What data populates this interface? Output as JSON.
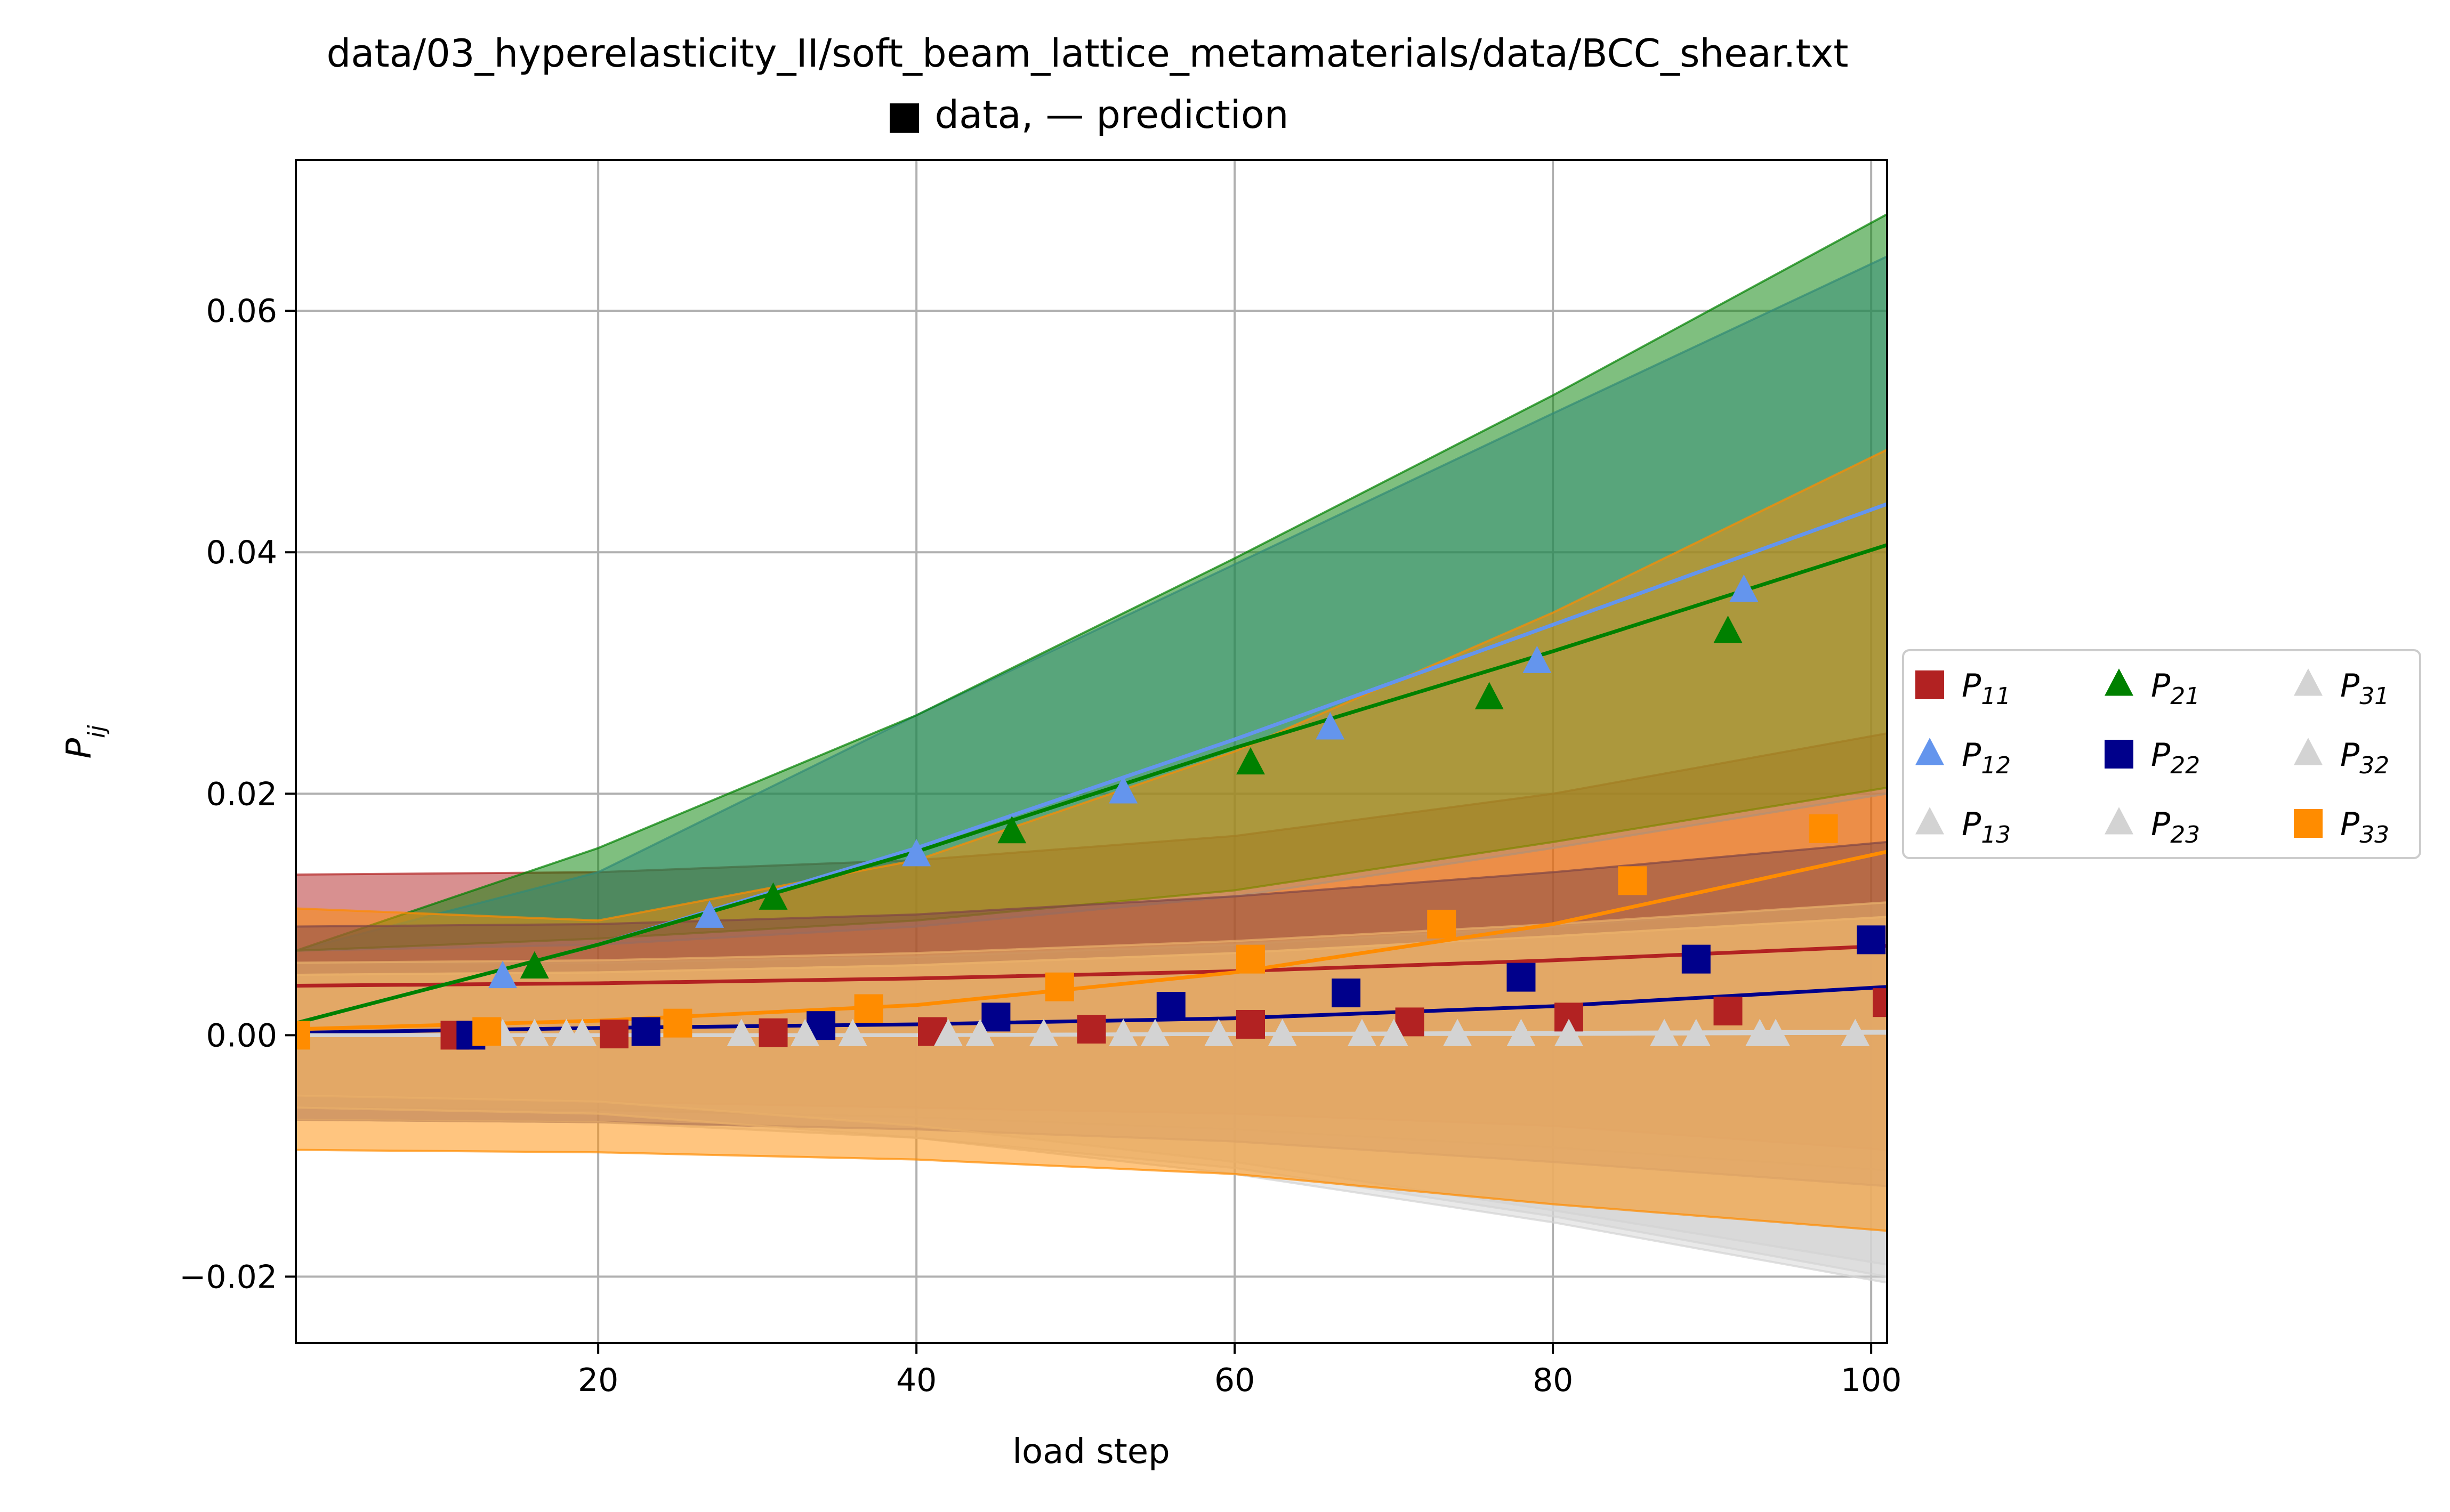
{
  "chart_data": {
    "type": "line",
    "title": "data/03_hyperelasticity_II/soft_beam_lattice_metamaterials/data/BCC_shear.txt",
    "subtitle": "■ data, — prediction",
    "xlabel": "load step",
    "ylabel": "P_ij",
    "xlim": [
      1,
      101
    ],
    "ylim": [
      -0.0255,
      0.0725
    ],
    "xticks": [
      20,
      40,
      60,
      80,
      100
    ],
    "yticks": [
      -0.02,
      0.0,
      0.02,
      0.04,
      0.06
    ],
    "xtick_labels": [
      "20",
      "40",
      "60",
      "80",
      "100"
    ],
    "ytick_labels": [
      "−0.02",
      "0.00",
      "0.02",
      "0.04",
      "0.06"
    ],
    "grid": true,
    "legend_position": "outside-right",
    "series": [
      {
        "name": "P",
        "sub": "11",
        "color": "#b22222",
        "marker": "square",
        "data_x": [
          11,
          21,
          31,
          41,
          51,
          61,
          71,
          81,
          91,
          101
        ],
        "data_y": [
          0.0,
          0.0001,
          0.0002,
          0.0003,
          0.0005,
          0.0009,
          0.0011,
          0.0015,
          0.002,
          0.0027
        ],
        "pred_x": [
          1,
          20,
          40,
          60,
          80,
          101
        ],
        "pred_y": [
          0.0041,
          0.0043,
          0.0047,
          0.0053,
          0.0062,
          0.0074
        ],
        "band_upper": [
          0.0133,
          0.0135,
          0.0145,
          0.0165,
          0.02,
          0.025
        ],
        "band_lower": [
          -0.005,
          -0.0055,
          -0.006,
          -0.0065,
          -0.0075,
          -0.0095
        ]
      },
      {
        "name": "P",
        "sub": "12",
        "color": "#6495ed",
        "marker": "triangle",
        "data_x": [
          14,
          27,
          40,
          53,
          66,
          79,
          92
        ],
        "data_y": [
          0.0048,
          0.0098,
          0.0149,
          0.0201,
          0.0254,
          0.0309,
          0.0368
        ],
        "pred_x": [
          1,
          20,
          40,
          60,
          80,
          101
        ],
        "pred_y": [
          0.001,
          0.0075,
          0.0155,
          0.0245,
          0.034,
          0.044
        ],
        "band_upper": [
          0.007,
          0.0135,
          0.0265,
          0.039,
          0.0515,
          0.0645
        ],
        "band_lower": [
          0.007,
          0.0075,
          0.009,
          0.0115,
          0.0155,
          0.02
        ]
      },
      {
        "name": "P",
        "sub": "13",
        "color": "#d3d3d3",
        "marker": "triangle",
        "data_x": [
          16,
          29,
          42,
          55,
          68,
          81,
          94
        ],
        "data_y": [
          0.0,
          0.0,
          0.0,
          0.0,
          0.0,
          0.0,
          0.0
        ],
        "pred_x": [
          1,
          20,
          40,
          60,
          80,
          101
        ],
        "pred_y": [
          0.0,
          0.0,
          0.0,
          0.0001,
          0.0002,
          0.0003
        ],
        "band_upper": [
          0.006,
          0.006,
          0.0065,
          0.0075,
          0.009,
          0.011
        ],
        "band_lower": [
          -0.006,
          -0.0062,
          -0.0068,
          -0.0078,
          -0.0093,
          -0.0112
        ]
      },
      {
        "name": "P",
        "sub": "21",
        "color": "#008000",
        "marker": "triangle",
        "data_x": [
          16,
          31,
          46,
          61,
          76,
          91
        ],
        "data_y": [
          0.0056,
          0.0113,
          0.0168,
          0.0225,
          0.0279,
          0.0334
        ],
        "pred_x": [
          1,
          20,
          40,
          60,
          80,
          101
        ],
        "pred_y": [
          0.001,
          0.0075,
          0.0152,
          0.0238,
          0.0318,
          0.0406
        ],
        "band_upper": [
          0.007,
          0.0155,
          0.0265,
          0.0395,
          0.053,
          0.068
        ],
        "band_lower": [
          0.007,
          0.008,
          0.0095,
          0.012,
          0.016,
          0.0205
        ]
      },
      {
        "name": "P",
        "sub": "22",
        "color": "#00008b",
        "marker": "square",
        "data_x": [
          12,
          23,
          34,
          45,
          56,
          67,
          78,
          89,
          100
        ],
        "data_y": [
          0.0,
          0.0003,
          0.0008,
          0.0015,
          0.0024,
          0.0035,
          0.0048,
          0.0063,
          0.0079
        ],
        "pred_x": [
          1,
          20,
          40,
          60,
          80,
          101
        ],
        "pred_y": [
          0.0002,
          0.0006,
          0.0009,
          0.0014,
          0.0024,
          0.004
        ],
        "band_upper": [
          0.009,
          0.0092,
          0.01,
          0.0115,
          0.0135,
          0.016
        ],
        "band_lower": [
          -0.007,
          -0.0072,
          -0.0078,
          -0.0088,
          -0.0105,
          -0.0125
        ]
      },
      {
        "name": "P",
        "sub": "23",
        "color": "#d3d3d3",
        "marker": "triangle",
        "data_x": [
          18,
          33,
          48,
          63,
          78,
          93
        ],
        "data_y": [
          0.0,
          0.0,
          0.0,
          0.0,
          0.0,
          0.0
        ],
        "pred_x": [
          1,
          20,
          40,
          60,
          80,
          101
        ],
        "pred_y": [
          0.0,
          0.0,
          0.0,
          0.0001,
          0.0001,
          0.0002
        ],
        "band_upper": [
          0.006,
          0.0062,
          0.0068,
          0.0078,
          0.0092,
          0.011
        ],
        "band_lower": [
          -0.007,
          -0.0072,
          -0.0085,
          -0.011,
          -0.015,
          -0.02
        ]
      },
      {
        "name": "P",
        "sub": "31",
        "color": "#d3d3d3",
        "marker": "triangle",
        "data_x": [
          14,
          29,
          44,
          59,
          74,
          89
        ],
        "data_y": [
          0.0,
          0.0,
          0.0,
          0.0,
          0.0,
          0.0
        ],
        "pred_x": [
          1,
          20,
          40,
          60,
          80,
          101
        ],
        "pred_y": [
          0.0,
          0.0,
          0.0,
          0.0001,
          0.0001,
          0.0002
        ],
        "band_upper": [
          0.005,
          0.0052,
          0.0058,
          0.0068,
          0.0082,
          0.0098
        ],
        "band_lower": [
          -0.006,
          -0.0065,
          -0.0085,
          -0.0115,
          -0.0155,
          -0.0205
        ]
      },
      {
        "name": "P",
        "sub": "32",
        "color": "#d3d3d3",
        "marker": "triangle",
        "data_x": [
          19,
          36,
          53,
          70,
          87,
          99
        ],
        "data_y": [
          0.0,
          0.0,
          0.0,
          0.0,
          0.0,
          0.0
        ],
        "pred_x": [
          1,
          20,
          40,
          60,
          80,
          101
        ],
        "pred_y": [
          0.0,
          0.0,
          0.0,
          0.0001,
          0.0001,
          0.0002
        ],
        "band_upper": [
          0.005,
          0.0052,
          0.0058,
          0.0068,
          0.0082,
          0.0098
        ],
        "band_lower": [
          -0.005,
          -0.0055,
          -0.0075,
          -0.0105,
          -0.0145,
          -0.019
        ]
      },
      {
        "name": "P",
        "sub": "33",
        "color": "#ff8c00",
        "marker": "square",
        "data_x": [
          1,
          13,
          25,
          37,
          49,
          61,
          73,
          85,
          97
        ],
        "data_y": [
          0.0,
          0.0003,
          0.001,
          0.0022,
          0.004,
          0.0063,
          0.0092,
          0.0128,
          0.0171
        ],
        "pred_x": [
          1,
          20,
          40,
          60,
          80,
          101
        ],
        "pred_y": [
          0.0005,
          0.0012,
          0.0025,
          0.0052,
          0.0092,
          0.0152
        ],
        "band_upper": [
          0.0105,
          0.0095,
          0.0145,
          0.0235,
          0.035,
          0.0485
        ],
        "band_lower": [
          -0.0095,
          -0.0097,
          -0.0103,
          -0.0115,
          -0.014,
          -0.0162
        ]
      }
    ],
    "legend_order": [
      0,
      1,
      2,
      3,
      4,
      5,
      6,
      7,
      8
    ]
  }
}
